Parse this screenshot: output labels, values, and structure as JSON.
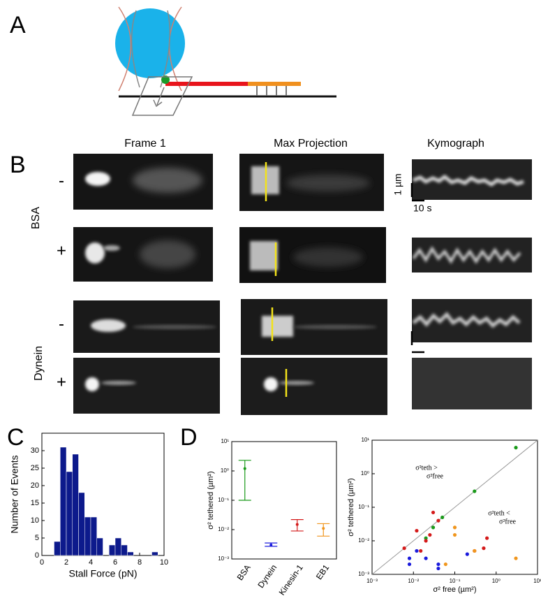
{
  "panel_labels": [
    "A",
    "B",
    "C",
    "D"
  ],
  "panel_b": {
    "columns": [
      "Frame 1",
      "Max Projection",
      "Kymograph"
    ],
    "rows": [
      "-",
      "+",
      "-",
      "+"
    ],
    "groups": [
      "BSA",
      "Dynein"
    ],
    "scale_bars": [
      "1 µm",
      "10 s"
    ]
  },
  "chart_data": [
    {
      "type": "histogram",
      "color": "#0d1a8c",
      "bins": [
        1,
        1.5,
        2,
        2.5,
        3,
        3.5,
        4,
        4.5,
        5,
        5.5,
        6,
        6.5,
        7,
        7.5,
        8,
        8.5,
        9,
        9.5
      ],
      "counts": [
        4,
        31,
        24,
        29,
        18,
        11,
        11,
        5,
        0,
        3,
        5,
        3,
        1,
        0,
        0,
        0,
        1
      ],
      "xlabel": "Stall Force (pN)",
      "ylabel": "Number of Events",
      "xlim": [
        0,
        10
      ],
      "xticks": [
        0,
        2,
        4,
        6,
        8,
        10
      ],
      "ylim": [
        0,
        35
      ],
      "yticks": [
        0,
        5,
        10,
        15,
        20,
        25,
        30
      ]
    },
    {
      "type": "errorbar",
      "log_y": true,
      "categories": [
        "BSA",
        "Dynein",
        "Kinesin-1",
        "EB1"
      ],
      "colors": [
        "#1a9a1a",
        "#1a1adc",
        "#d41a1a",
        "#f0961e"
      ],
      "values": [
        1.2,
        0.003,
        0.015,
        0.011
      ],
      "lower": [
        0.1,
        0.0027,
        0.009,
        0.006
      ],
      "upper": [
        2.3,
        0.0035,
        0.022,
        0.016
      ],
      "ylabel": "σ² tethered (µm²)",
      "ylim": [
        0.001,
        10
      ],
      "yticks": [
        {
          "value": 0.001,
          "label": "10⁻³"
        },
        {
          "value": 0.01,
          "label": "10⁻²"
        },
        {
          "value": 0.1,
          "label": "10⁻¹"
        },
        {
          "value": 1,
          "label": "10⁰"
        },
        {
          "value": 10,
          "label": "10¹"
        }
      ]
    },
    {
      "type": "scatter",
      "log_x": true,
      "log_y": true,
      "series": [
        {
          "color": "#1a9a1a",
          "x": [
            0.02,
            0.03,
            0.05,
            0.3,
            3
          ],
          "y": [
            0.012,
            0.025,
            0.05,
            0.3,
            6
          ]
        },
        {
          "color": "#d41a1a",
          "x": [
            0.006,
            0.012,
            0.02,
            0.03,
            0.015,
            0.3,
            0.6,
            0.5,
            0.04,
            0.025
          ],
          "y": [
            0.006,
            0.02,
            0.01,
            0.07,
            0.005,
            0.005,
            0.012,
            0.006,
            0.04,
            0.015
          ]
        },
        {
          "color": "#1a1adc",
          "x": [
            0.008,
            0.008,
            0.012,
            0.02,
            0.04,
            0.04,
            0.2
          ],
          "y": [
            0.003,
            0.002,
            0.005,
            0.003,
            0.002,
            0.0015,
            0.004
          ]
        },
        {
          "color": "#f0961e",
          "x": [
            0.1,
            0.1,
            0.06,
            0.3,
            3
          ],
          "y": [
            0.025,
            0.015,
            0.002,
            0.005,
            0.003
          ]
        }
      ],
      "annotations": [
        [
          "σ²teth >",
          "σ²free"
        ],
        [
          "σ²teth <",
          "σ²free"
        ]
      ],
      "xlabel": "σ² free (µm²)",
      "ylabel": "σ² tethered (µm²)",
      "xlim": [
        0.001,
        10
      ],
      "xticks": [
        {
          "value": 0.001,
          "label": "10⁻³"
        },
        {
          "value": 0.01,
          "label": "10⁻²"
        },
        {
          "value": 0.1,
          "label": "10⁻¹"
        },
        {
          "value": 1,
          "label": "10⁰"
        },
        {
          "value": 10,
          "label": "10¹"
        }
      ],
      "ylim": [
        0.001,
        10
      ],
      "yticks": [
        {
          "value": 0.001,
          "label": "10⁻³"
        },
        {
          "value": 0.01,
          "label": "10⁻²"
        },
        {
          "value": 0.1,
          "label": "10⁻¹"
        },
        {
          "value": 1,
          "label": "10⁰"
        },
        {
          "value": 10,
          "label": "10¹"
        }
      ]
    }
  ]
}
